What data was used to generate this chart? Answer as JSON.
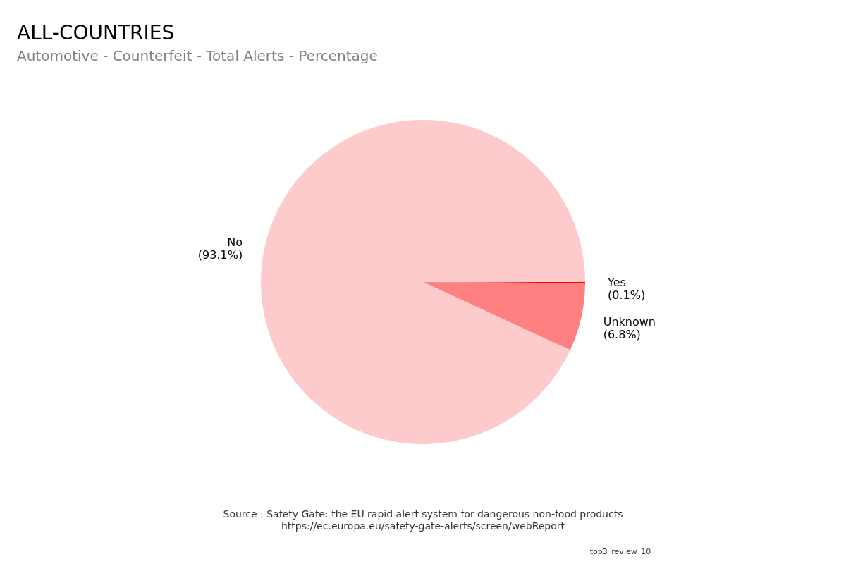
{
  "chart_data": {
    "type": "pie",
    "title": "ALL-COUNTRIES",
    "subtitle": "Automotive - Counterfeit - Total Alerts - Percentage",
    "categories": [
      "Yes",
      "Unknown",
      "No"
    ],
    "values": [
      0.1,
      6.8,
      93.1
    ],
    "colors": [
      "#ff0000",
      "#ff8080",
      "#fdcbcb"
    ],
    "value_labels": [
      "(0.1%)",
      "(6.8%)",
      "(93.1%)"
    ],
    "annotations": [
      "Source : Safety Gate: the EU rapid alert system for dangerous non-food products",
      "https://ec.europa.eu/safety-gate-alerts/screen/webReport",
      "top3_review_10"
    ]
  }
}
